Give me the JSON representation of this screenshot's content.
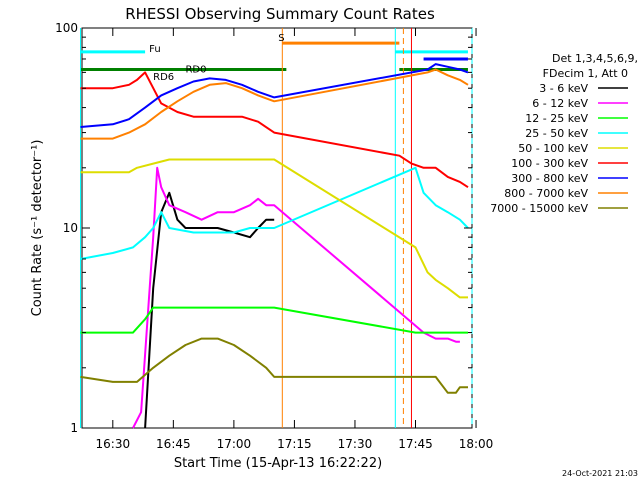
{
  "chart_data": {
    "type": "line",
    "title": "RHESSI Observing Summary Count Rates",
    "xlabel": "Start Time (15-Apr-13 16:22:22)",
    "ylabel": "Count Rate (s⁻¹ detector⁻¹)",
    "x_ticks": [
      "16:30",
      "16:45",
      "17:00",
      "17:15",
      "17:30",
      "17:45",
      "18:00"
    ],
    "y_ticks": [
      "1",
      "10",
      "100"
    ],
    "yscale": "log",
    "xlim": [
      "16:22:22",
      "17:59"
    ],
    "ylim": [
      1,
      100
    ],
    "legend_header": [
      "Det 1,3,4,5,6,9,",
      "FDecim 1, Att 0"
    ],
    "legend_placement": "right",
    "timestamp": "24-Oct-2021 21:03",
    "annotations": [
      {
        "text": "Fu",
        "x": "16:39",
        "y": 76
      },
      {
        "text": "RD6",
        "x": "16:40",
        "y": 55
      },
      {
        "text": "RD0",
        "x": "16:48",
        "y": 60
      },
      {
        "text": "S",
        "x": "17:11",
        "y": 86
      }
    ],
    "series": [
      {
        "name": "3 - 6 keV",
        "color": "#000000",
        "x": [
          "16:38",
          "16:40",
          "16:42",
          "16:44",
          "16:46",
          "16:48",
          "16:52",
          "16:56",
          "17:00",
          "17:04",
          "17:06",
          "17:08",
          "17:10"
        ],
        "y": [
          1,
          5,
          12,
          15,
          11,
          10,
          10,
          10,
          9.5,
          9,
          10,
          11,
          11
        ]
      },
      {
        "name": "6 - 12 keV",
        "color": "#ff00ff",
        "x": [
          "16:35",
          "16:37",
          "16:40",
          "16:41",
          "16:42",
          "16:44",
          "16:48",
          "16:52",
          "16:56",
          "17:00",
          "17:04",
          "17:06",
          "17:08",
          "17:10",
          "17:47",
          "17:50",
          "17:53",
          "17:55",
          "17:56"
        ],
        "y": [
          1,
          1.2,
          9,
          20,
          16,
          13,
          12,
          11,
          12,
          12,
          13,
          14,
          13,
          13,
          3,
          2.8,
          2.8,
          2.7,
          2.7
        ]
      },
      {
        "name": "12 - 25 keV",
        "color": "#00ff00",
        "x": [
          "16:22",
          "16:30",
          "16:35",
          "16:38",
          "16:40",
          "16:44",
          "16:50",
          "16:56",
          "17:00",
          "17:04",
          "17:08",
          "17:10",
          "17:45",
          "17:50",
          "17:55",
          "17:58"
        ],
        "y": [
          3,
          3,
          3,
          3.5,
          4,
          4,
          4,
          4,
          4,
          4,
          4,
          4,
          3,
          3,
          3,
          3
        ]
      },
      {
        "name": "25 - 50 keV",
        "color": "#00ffff",
        "x": [
          "16:22",
          "16:30",
          "16:35",
          "16:38",
          "16:40",
          "16:42",
          "16:44",
          "16:50",
          "16:56",
          "17:00",
          "17:04",
          "17:08",
          "17:10",
          "17:45",
          "17:47",
          "17:50",
          "17:53",
          "17:56",
          "17:58"
        ],
        "y": [
          7,
          7.5,
          8,
          9,
          10,
          12,
          10,
          9.5,
          9.5,
          9.5,
          10,
          10,
          10,
          20,
          15,
          13,
          12,
          11,
          10
        ]
      },
      {
        "name": "50 - 100 keV",
        "color": "#dddd00",
        "x": [
          "16:22",
          "16:30",
          "16:34",
          "16:36",
          "16:40",
          "16:44",
          "16:48",
          "16:52",
          "16:56",
          "17:00",
          "17:04",
          "17:08",
          "17:10",
          "17:45",
          "17:48",
          "17:50",
          "17:53",
          "17:56",
          "17:58"
        ],
        "y": [
          19,
          19,
          19,
          20,
          21,
          22,
          22,
          22,
          22,
          22,
          22,
          22,
          22,
          8,
          6,
          5.5,
          5,
          4.5,
          4.5
        ]
      },
      {
        "name": "100 - 300 keV",
        "color": "#ff0000",
        "x": [
          "16:22",
          "16:30",
          "16:34",
          "16:36",
          "16:38",
          "16:42",
          "16:46",
          "16:50",
          "16:54",
          "16:58",
          "17:02",
          "17:06",
          "17:10",
          "17:41",
          "17:44",
          "17:47",
          "17:50",
          "17:53",
          "17:56",
          "17:58"
        ],
        "y": [
          50,
          50,
          52,
          55,
          60,
          42,
          38,
          36,
          36,
          36,
          36,
          34,
          30,
          23,
          21,
          20,
          20,
          18,
          17,
          16
        ]
      },
      {
        "name": "300 - 800 keV",
        "color": "#0000ff",
        "x": [
          "16:22",
          "16:30",
          "16:34",
          "16:38",
          "16:42",
          "16:46",
          "16:50",
          "16:54",
          "16:58",
          "17:02",
          "17:06",
          "17:10",
          "17:48",
          "17:50",
          "17:53",
          "17:56",
          "17:58"
        ],
        "y": [
          32,
          33,
          35,
          40,
          46,
          50,
          54,
          56,
          55,
          52,
          48,
          45,
          62,
          66,
          64,
          62,
          60
        ]
      },
      {
        "name": "800 - 7000 keV",
        "color": "#ff8000",
        "x": [
          "16:22",
          "16:30",
          "16:34",
          "16:38",
          "16:42",
          "16:46",
          "16:50",
          "16:54",
          "16:58",
          "17:02",
          "17:06",
          "17:10",
          "17:48",
          "17:50",
          "17:53",
          "17:56",
          "17:58"
        ],
        "y": [
          28,
          28,
          30,
          33,
          38,
          43,
          48,
          52,
          53,
          50,
          46,
          43,
          60,
          62,
          58,
          55,
          52
        ]
      },
      {
        "name": "7000 - 15000 keV",
        "color": "#808000",
        "x": [
          "16:22",
          "16:30",
          "16:36",
          "16:40",
          "16:44",
          "16:48",
          "16:52",
          "16:56",
          "17:00",
          "17:04",
          "17:08",
          "17:10",
          "17:47",
          "17:50",
          "17:53",
          "17:55",
          "17:56",
          "17:58"
        ],
        "y": [
          1.8,
          1.7,
          1.7,
          2,
          2.3,
          2.6,
          2.8,
          2.8,
          2.6,
          2.3,
          2,
          1.8,
          1.8,
          1.8,
          1.5,
          1.5,
          1.6,
          1.6
        ]
      }
    ],
    "state_bars": [
      {
        "color": "#00ffff",
        "y": 76,
        "segments": [
          [
            "16:22",
            "16:38"
          ],
          [
            "17:40",
            "17:58"
          ]
        ]
      },
      {
        "color": "#008000",
        "y": 62,
        "segments": [
          [
            "16:22",
            "17:13"
          ],
          [
            "17:41",
            "17:58"
          ]
        ]
      },
      {
        "color": "#ff8000",
        "y": 84,
        "segments": [
          [
            "17:12",
            "17:41"
          ]
        ]
      },
      {
        "color": "#0000ff",
        "y": 70,
        "segments": [
          [
            "17:47",
            "17:58"
          ]
        ]
      }
    ],
    "vertical_markers": [
      {
        "color": "#00ffff",
        "x": "16:22",
        "style": "solid"
      },
      {
        "color": "#ff8000",
        "x": "17:12",
        "style": "solid"
      },
      {
        "color": "#00ffff",
        "x": "17:40",
        "style": "solid"
      },
      {
        "color": "#ff8000",
        "x": "17:42",
        "style": "dashed"
      },
      {
        "color": "#ff0000",
        "x": "17:44",
        "style": "solid"
      },
      {
        "color": "#00ffff",
        "x": "17:59",
        "style": "dashed"
      }
    ]
  }
}
